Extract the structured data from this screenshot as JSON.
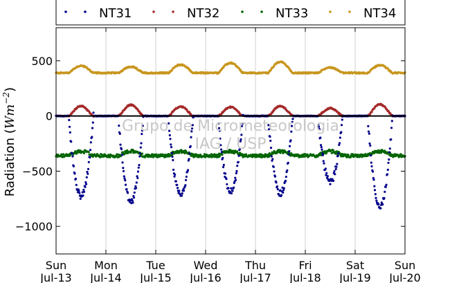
{
  "chart_data": {
    "type": "scatter",
    "ylabel": "Radiation (",
    "ylabel_math": "Wm",
    "ylabel_exp": "−2",
    "ylabel_close": ")",
    "ylim": [
      -1250,
      800
    ],
    "yticks": [
      500,
      0,
      -500,
      -1000
    ],
    "ytick_labels": [
      "500",
      "0",
      "−500",
      "−1000"
    ],
    "xlim": [
      0,
      7
    ],
    "xticks": [
      0,
      1,
      2,
      3,
      4,
      5,
      6,
      7
    ],
    "xtick_day": [
      "Sun",
      "Mon",
      "Tue",
      "Wed",
      "Thu",
      "Fri",
      "Sat",
      "Sun"
    ],
    "xtick_date": [
      "Jul-13",
      "Jul-14",
      "Jul-15",
      "Jul-16",
      "Jul-17",
      "Jul-18",
      "Jul-19",
      "Jul-20"
    ],
    "grid": "vertical",
    "legend_position": "top",
    "zero_line": true,
    "series": [
      {
        "name": "NT31",
        "color": "#00008b",
        "day_peaks": [
          -730,
          -780,
          -720,
          -680,
          -700,
          -600,
          -820
        ]
      },
      {
        "name": "NT32",
        "color": "#a52a2a",
        "day_peaks": [
          90,
          100,
          85,
          80,
          90,
          70,
          105
        ]
      },
      {
        "name": "NT33",
        "color": "#006400",
        "night": -360,
        "day": -320
      },
      {
        "name": "NT34",
        "color": "#c8961e",
        "night": 390,
        "day_peaks": [
          455,
          445,
          465,
          480,
          490,
          440,
          460
        ]
      }
    ]
  },
  "watermark": {
    "line1": "Grupo de Micrometeorologia",
    "line2": "IAG / USP"
  }
}
